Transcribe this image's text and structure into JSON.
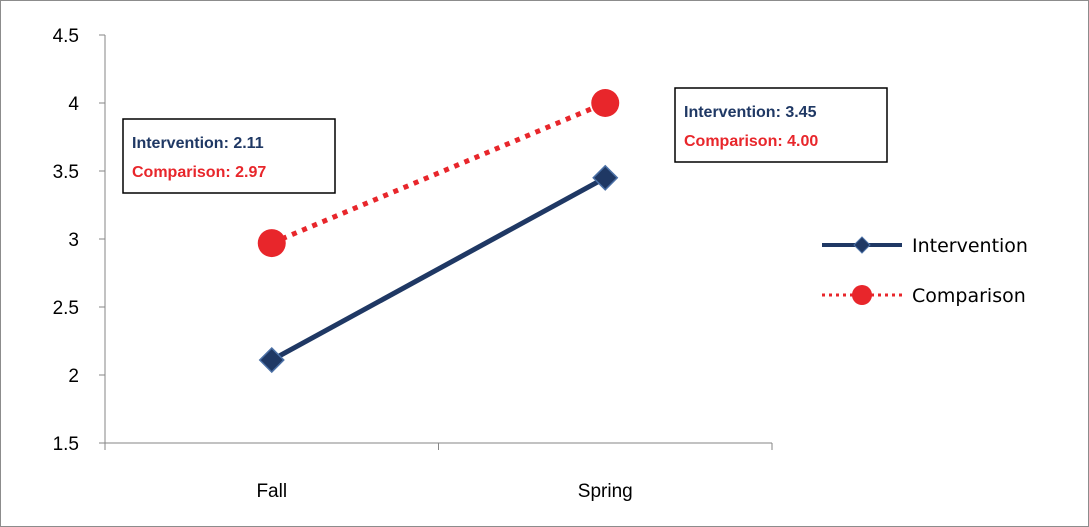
{
  "chart_data": {
    "type": "line",
    "categories": [
      "Fall",
      "Spring"
    ],
    "series": [
      {
        "name": "Intervention",
        "values": [
          2.11,
          3.45
        ],
        "color": "#1F3864",
        "marker": "diamond",
        "line_style": "solid"
      },
      {
        "name": "Comparison",
        "values": [
          2.97,
          4.0
        ],
        "color": "#E8262B",
        "marker": "circle",
        "line_style": "dotted"
      }
    ],
    "ylim": [
      1.5,
      4.5
    ],
    "yticks": [
      1.5,
      2,
      2.5,
      3,
      3.5,
      4,
      4.5
    ],
    "ytick_labels": [
      "1.5",
      "2",
      "2.5",
      "3",
      "3.5",
      "4",
      "4.5"
    ],
    "grid": false,
    "legend_position": "right",
    "annotations": [
      {
        "category": "Fall",
        "lines": [
          {
            "label": "Intervention:",
            "value": "2.11",
            "series": "Intervention"
          },
          {
            "label": "Comparison:",
            "value": "2.97",
            "series": "Comparison"
          }
        ]
      },
      {
        "category": "Spring",
        "lines": [
          {
            "label": "Intervention:",
            "value": "3.45",
            "series": "Intervention"
          },
          {
            "label": "Comparison:",
            "value": "4.00",
            "series": "Comparison"
          }
        ]
      }
    ]
  }
}
